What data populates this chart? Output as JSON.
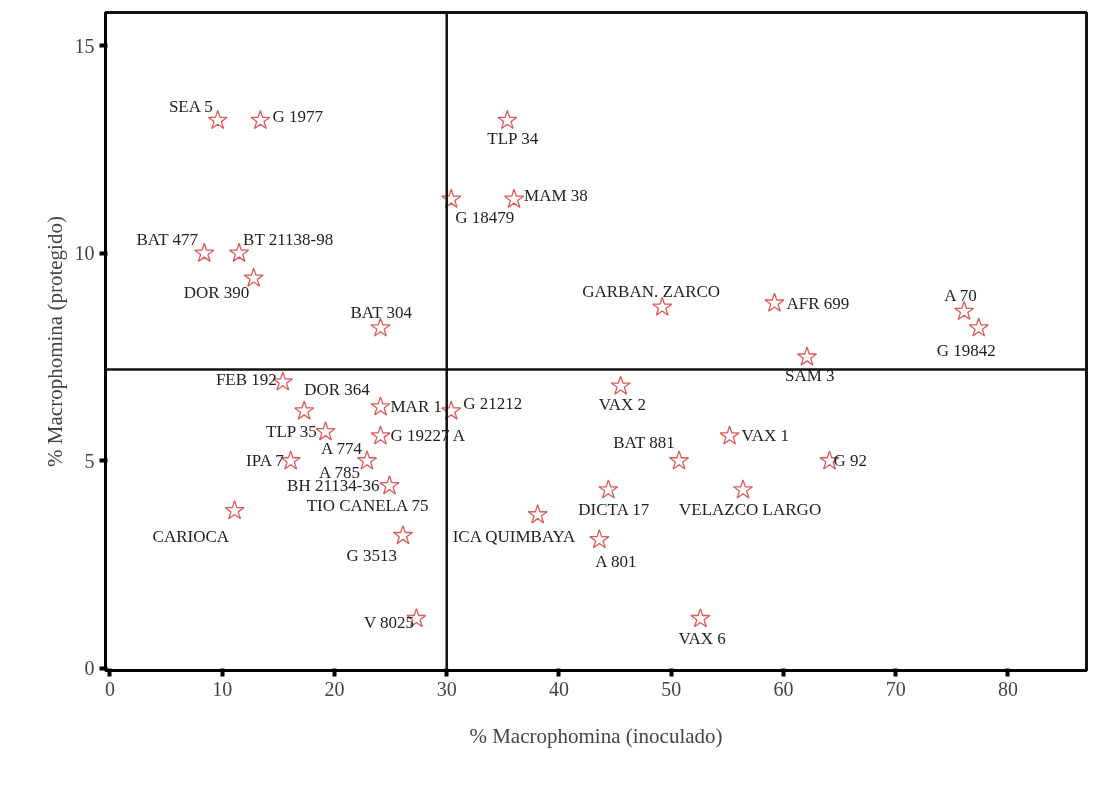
{
  "chart_data": {
    "type": "scatter",
    "xlabel": "% Macrophomina (inoculado)",
    "ylabel": "% Macrophomina (protegido)",
    "xlim": [
      -0.4,
      87
    ],
    "ylim": [
      -0.05,
      15.8
    ],
    "xticks": [
      0,
      10,
      20,
      30,
      40,
      50,
      60,
      70,
      80
    ],
    "yticks": [
      0,
      5,
      10,
      15
    ],
    "grid": false,
    "marker": "star",
    "series": [
      {
        "color": "#e05a5a",
        "x": [
          9.6,
          13.4,
          35.4,
          30.4,
          36.0,
          8.4,
          11.5,
          12.8,
          24.1,
          49.2,
          59.2,
          76.1,
          77.4,
          62.1,
          15.4,
          17.3,
          24.1,
          30.4,
          45.5,
          19.2,
          24.1,
          55.2,
          16.1,
          22.9,
          50.7,
          64.1,
          24.9,
          44.4,
          56.4,
          11.1,
          38.1,
          43.6,
          26.1,
          27.3,
          52.6
        ],
        "values": [
          13.2,
          13.2,
          13.2,
          11.3,
          11.3,
          10.0,
          10.0,
          9.4,
          8.2,
          8.7,
          8.8,
          8.6,
          8.2,
          7.5,
          6.9,
          6.2,
          6.3,
          6.2,
          6.8,
          5.7,
          5.6,
          5.6,
          5.0,
          5.0,
          5.0,
          5.0,
          4.4,
          4.3,
          4.3,
          3.8,
          3.7,
          3.1,
          3.2,
          1.2,
          1.2
        ]
      }
    ],
    "ref_lines": [
      {
        "axis": "x",
        "value": 30,
        "color": "#111111"
      },
      {
        "axis": "y",
        "value": 7.2,
        "color": "#111111"
      }
    ],
    "annotations": [
      {
        "text": "SEA 5",
        "x": 9.6,
        "y": 13.2
      },
      {
        "text": "G 1977",
        "x": 13.4,
        "y": 13.2
      },
      {
        "text": "TLP 34",
        "x": 35.4,
        "y": 13.2
      },
      {
        "text": "G 18479",
        "x": 30.4,
        "y": 11.3
      },
      {
        "text": "MAM 38",
        "x": 36.0,
        "y": 11.3
      },
      {
        "text": "BAT 477",
        "x": 8.4,
        "y": 10.0
      },
      {
        "text": "BT 21138-98",
        "x": 11.5,
        "y": 10.0
      },
      {
        "text": "DOR 390",
        "x": 12.8,
        "y": 9.4
      },
      {
        "text": "BAT 304",
        "x": 24.1,
        "y": 8.2
      },
      {
        "text": "GARBAN. ZARCO",
        "x": 49.2,
        "y": 8.7
      },
      {
        "text": "AFR 699",
        "x": 59.2,
        "y": 8.8
      },
      {
        "text": "A 70",
        "x": 76.1,
        "y": 8.6
      },
      {
        "text": "G 19842",
        "x": 77.4,
        "y": 8.2
      },
      {
        "text": "SAM 3",
        "x": 62.1,
        "y": 7.5
      },
      {
        "text": "FEB 192",
        "x": 15.4,
        "y": 6.9
      },
      {
        "text": "DOR 364",
        "x": 17.3,
        "y": 6.2
      },
      {
        "text": "MAR 1",
        "x": 24.1,
        "y": 6.3
      },
      {
        "text": "G 21212",
        "x": 30.4,
        "y": 6.2
      },
      {
        "text": "VAX 2",
        "x": 45.5,
        "y": 6.8
      },
      {
        "text": "TLP 35",
        "x": 19.2,
        "y": 5.7
      },
      {
        "text": "G 19227 A",
        "x": 24.1,
        "y": 5.6
      },
      {
        "text": "VAX 1",
        "x": 55.2,
        "y": 5.6
      },
      {
        "text": "IPA 7",
        "x": 16.1,
        "y": 5.0
      },
      {
        "text": "A 774",
        "x": 22.9,
        "y": 5.0
      },
      {
        "text": "BAT 881",
        "x": 50.7,
        "y": 5.0
      },
      {
        "text": "G  92",
        "x": 64.1,
        "y": 5.0
      },
      {
        "text": "BH 21134-36",
        "x": 24.9,
        "y": 4.4
      },
      {
        "text": "DICTA 17",
        "x": 44.4,
        "y": 4.3
      },
      {
        "text": "VELAZCO LARGO",
        "x": 56.4,
        "y": 4.3
      },
      {
        "text": "CARIOCA",
        "x": 11.1,
        "y": 3.8
      },
      {
        "text": "ICA QUIMBAYA",
        "x": 38.1,
        "y": 3.7
      },
      {
        "text": "A 801",
        "x": 43.6,
        "y": 3.1
      },
      {
        "text": "G 3513",
        "x": 26.1,
        "y": 3.2
      },
      {
        "text": "V 8025",
        "x": 27.3,
        "y": 1.2
      },
      {
        "text": "VAX 6",
        "x": 52.6,
        "y": 1.2
      },
      {
        "text": "A 785",
        "x": 22.9,
        "y": 5.0
      },
      {
        "text": "TIO CANELA 75",
        "x": 24.9,
        "y": 4.4
      }
    ]
  }
}
